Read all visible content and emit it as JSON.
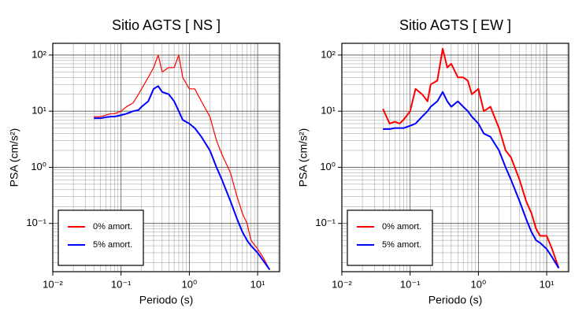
{
  "chart_data": [
    {
      "type": "line",
      "title": "Sitio AGTS [ NS ]",
      "x_label": "Periodo (s)",
      "y_label": "PSA (cm/s²)",
      "log_x": true,
      "log_y": true,
      "grid": true,
      "minor_grid": true,
      "legend": "lower left",
      "xlim": [
        0.01,
        21
      ],
      "ylim": [
        0.0138,
        162
      ],
      "xticks": [
        {
          "value": 0.01,
          "label": "10⁻²"
        },
        {
          "value": 0.1,
          "label": "10⁻¹"
        },
        {
          "value": 1,
          "label": "10⁰"
        },
        {
          "value": 10,
          "label": "10¹"
        }
      ],
      "yticks": [
        {
          "value": 0.1,
          "label": "10⁻¹"
        },
        {
          "value": 1,
          "label": "10⁰"
        },
        {
          "value": 10,
          "label": "10¹"
        },
        {
          "value": 100,
          "label": "10²"
        }
      ],
      "x": [
        0.04,
        0.05,
        0.06,
        0.07,
        0.08,
        0.1,
        0.12,
        0.15,
        0.18,
        0.2,
        0.25,
        0.3,
        0.35,
        0.4,
        0.5,
        0.6,
        0.7,
        0.8,
        1.0,
        1.2,
        1.5,
        2,
        2.5,
        3,
        4,
        5,
        6,
        7,
        8,
        10,
        12,
        15
      ],
      "series": [
        {
          "name": "0% amort.",
          "color": "#ff0000",
          "width": 1.2,
          "values": [
            8,
            8,
            8.5,
            9,
            9,
            10,
            12,
            14,
            20,
            25,
            40,
            60,
            100,
            50,
            60,
            60,
            100,
            40,
            25,
            25,
            15,
            8,
            3,
            1.7,
            0.8,
            0.3,
            0.15,
            0.1,
            0.05,
            0.035,
            0.025,
            0.015
          ]
        },
        {
          "name": "5% amort.",
          "color": "#0000ff",
          "width": 2,
          "values": [
            7.5,
            7.5,
            7.8,
            8,
            8,
            8.5,
            9,
            10,
            10.5,
            12,
            15,
            25,
            28,
            22,
            20,
            15,
            10,
            7,
            6,
            5,
            3.5,
            2,
            1,
            0.6,
            0.25,
            0.12,
            0.07,
            0.05,
            0.04,
            0.03,
            0.022,
            0.015
          ]
        }
      ]
    },
    {
      "type": "line",
      "title": "Sitio AGTS [ EW ]",
      "x_label": "Periodo (s)",
      "y_label": "PSA (cm/s²)",
      "log_x": true,
      "log_y": true,
      "grid": true,
      "minor_grid": true,
      "legend": "lower left",
      "xlim": [
        0.01,
        21
      ],
      "ylim": [
        0.0138,
        162
      ],
      "xticks": [
        {
          "value": 0.01,
          "label": "10⁻²"
        },
        {
          "value": 0.1,
          "label": "10⁻¹"
        },
        {
          "value": 1,
          "label": "10⁰"
        },
        {
          "value": 10,
          "label": "10¹"
        }
      ],
      "yticks": [
        {
          "value": 0.1,
          "label": "10⁻¹"
        },
        {
          "value": 1,
          "label": "10⁰"
        },
        {
          "value": 10,
          "label": "10¹"
        },
        {
          "value": 100,
          "label": "10²"
        }
      ],
      "x": [
        0.04,
        0.05,
        0.06,
        0.07,
        0.08,
        0.1,
        0.12,
        0.15,
        0.18,
        0.2,
        0.25,
        0.3,
        0.35,
        0.4,
        0.5,
        0.6,
        0.7,
        0.8,
        1.0,
        1.2,
        1.5,
        2,
        2.5,
        3,
        4,
        5,
        6,
        7,
        8,
        10,
        12,
        15
      ],
      "series": [
        {
          "name": "0% amort.",
          "color": "#ff0000",
          "width": 2,
          "values": [
            11,
            6,
            6.5,
            6,
            7,
            10,
            25,
            20,
            15,
            30,
            35,
            130,
            60,
            70,
            40,
            40,
            35,
            20,
            25,
            10,
            12,
            5,
            2,
            1.5,
            0.6,
            0.25,
            0.15,
            0.08,
            0.06,
            0.06,
            0.035,
            0.016
          ]
        },
        {
          "name": "5% amort.",
          "color": "#0000ff",
          "width": 2,
          "values": [
            4.8,
            4.8,
            5,
            5,
            5,
            5.5,
            6,
            8,
            10,
            12,
            15,
            22,
            15,
            12,
            15,
            12,
            10,
            8,
            6,
            4,
            3.5,
            2,
            1,
            0.6,
            0.25,
            0.12,
            0.07,
            0.05,
            0.045,
            0.035,
            0.025,
            0.016
          ]
        }
      ]
    }
  ]
}
